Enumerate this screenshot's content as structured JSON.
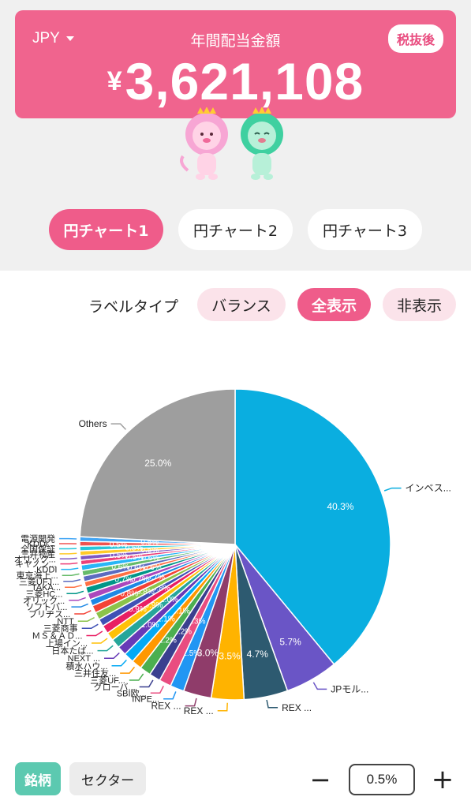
{
  "header": {
    "currency": "JPY",
    "title": "年間配当金額",
    "tax_badge": "税抜後",
    "amount_symbol": "¥",
    "amount": "3,621,108",
    "background": "#f0648e"
  },
  "chart_tabs": [
    {
      "label": "円チャート1",
      "active": true
    },
    {
      "label": "円チャート2",
      "active": false
    },
    {
      "label": "円チャート3",
      "active": false
    }
  ],
  "label_type": {
    "title": "ラベルタイプ",
    "options": [
      {
        "label": "バランス",
        "active": false
      },
      {
        "label": "全表示",
        "active": true
      },
      {
        "label": "非表示",
        "active": false
      }
    ]
  },
  "chart_data": {
    "type": "pie",
    "slices": [
      {
        "label": "インベス...",
        "value": 40.3,
        "pct_label": "40.3%",
        "color": "#0aaee0"
      },
      {
        "label": "JPモル...",
        "value": 5.7,
        "pct_label": "5.7%",
        "color": "#6a55c6"
      },
      {
        "label": "REX ...",
        "value": 4.7,
        "pct_label": "4.7%",
        "color": "#2d5a70"
      },
      {
        "label": "REX ...",
        "value": 3.5,
        "pct_label": "3.5%",
        "color": "#ffb300"
      },
      {
        "label": "REX ...",
        "value": 3.0,
        "pct_label": "3.0%",
        "color": "#8f3c6a"
      },
      {
        "label": "INPE...",
        "value": 1.5,
        "pct_label": "1.5%",
        "color": "#2196f3"
      },
      {
        "label": "SBI欧...",
        "value": 1.3,
        "pct_label": "1.3%",
        "color": "#e94d80"
      },
      {
        "label": "グローバ...",
        "value": 1.2,
        "pct_label": "1.2%",
        "color": "#3a3f8f"
      },
      {
        "label": "三菱UF...",
        "value": 1.2,
        "pct_label": "1.2%",
        "color": "#4caf50"
      },
      {
        "label": "三井住友...",
        "value": 1.1,
        "pct_label": "1.1%",
        "color": "#ff9800"
      },
      {
        "label": "積水ハウ...",
        "value": 1.1,
        "pct_label": "1.1%",
        "color": "#03a9f4"
      },
      {
        "label": "NEXT ...",
        "value": 1.0,
        "pct_label": "1.0%",
        "color": "#673ab7"
      },
      {
        "label": "日本たば...",
        "value": 1.0,
        "pct_label": "1.0%",
        "color": "#26a69a"
      },
      {
        "label": "上場イン...",
        "value": 0.9,
        "pct_label": "0.9%",
        "color": "#ffc107"
      },
      {
        "label": "ＭＳ＆ＡＤ...",
        "value": 0.9,
        "pct_label": "0.9%",
        "color": "#e91e63"
      },
      {
        "label": "三菱商事",
        "value": 0.8,
        "pct_label": "0.8%",
        "color": "#3f51b5"
      },
      {
        "label": "NTT",
        "value": 0.8,
        "pct_label": "0.8%",
        "color": "#8bc34a"
      },
      {
        "label": "ブリヂス...",
        "value": 0.8,
        "pct_label": "0.8%",
        "color": "#f44336"
      },
      {
        "label": "ソフトバ...",
        "value": 0.7,
        "pct_label": "0.7%",
        "color": "#1e88e5"
      },
      {
        "label": "オリック...",
        "value": 0.7,
        "pct_label": "0.7%",
        "color": "#ab47bc"
      },
      {
        "label": "三菱HC...",
        "value": 0.7,
        "pct_label": "0.7%",
        "color": "#009688"
      },
      {
        "label": "TAKA...",
        "value": 0.6,
        "pct_label": "0.6%",
        "color": "#ff7043"
      },
      {
        "label": "三菱UFJ...",
        "value": 0.6,
        "pct_label": "0.6%",
        "color": "#5c6bc0"
      },
      {
        "label": "東京海上...",
        "value": 0.6,
        "pct_label": "0.6%",
        "color": "#66bb6a"
      },
      {
        "label": "KDDI",
        "value": 0.6,
        "pct_label": "0.6%",
        "color": "#29b6f6"
      },
      {
        "label": "キヤノン...",
        "value": 0.5,
        "pct_label": "0.5%",
        "color": "#ec407a"
      },
      {
        "label": "オリック...",
        "value": 0.5,
        "pct_label": "0.5%",
        "color": "#7e57c2"
      },
      {
        "label": "三井物産",
        "value": 0.5,
        "pct_label": "0.5%",
        "color": "#ffca28"
      },
      {
        "label": "全国保証",
        "value": 0.5,
        "pct_label": "0.5%",
        "color": "#26c6da"
      },
      {
        "label": "KDDI...",
        "value": 0.5,
        "pct_label": "0.5%",
        "color": "#ef5350"
      },
      {
        "label": "電源開発",
        "value": 0.5,
        "pct_label": "0.5%",
        "color": "#42a5f5"
      },
      {
        "label": "Others",
        "value": 25.0,
        "pct_label": "25.0%",
        "color": "#9e9e9e"
      }
    ]
  },
  "bottom": {
    "group_tabs": [
      {
        "label": "銘柄",
        "active": true
      },
      {
        "label": "セクター",
        "active": false
      }
    ],
    "minus_label": "−",
    "plus_label": "+",
    "threshold": "0.5%"
  }
}
